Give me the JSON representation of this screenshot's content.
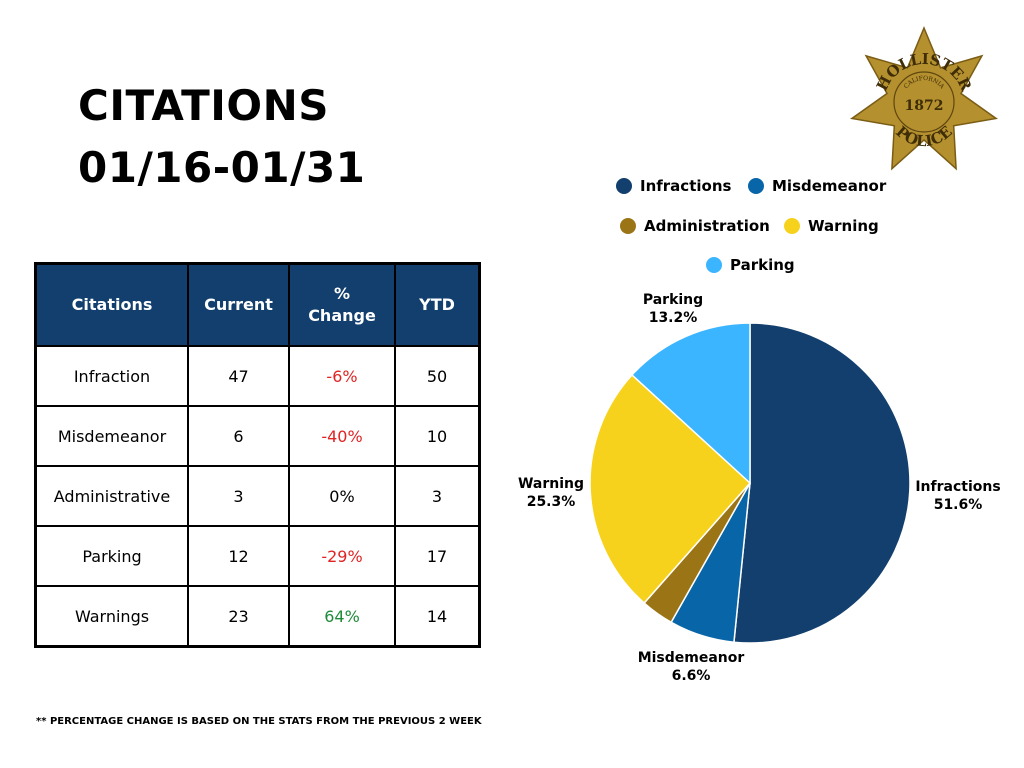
{
  "header": {
    "title_line1": "CITATIONS",
    "title_line2": "01/16-01/31"
  },
  "badge": {
    "top_text": "HOLLISTER",
    "state": "CALIFORNIA",
    "year": "1872",
    "bottom_text": "POLICE",
    "color": "#b5902f"
  },
  "table": {
    "headers": [
      "Citations",
      "Current",
      "%\nChange",
      "YTD"
    ],
    "rows": [
      {
        "name": "Infraction",
        "current": "47",
        "change": "-6%",
        "change_color": "#e02424",
        "ytd": "50"
      },
      {
        "name": "Misdemeanor",
        "current": "6",
        "change": "-40%",
        "change_color": "#e02424",
        "ytd": "10"
      },
      {
        "name": "Administrative",
        "current": "3",
        "change": "0%",
        "change_color": "#000000",
        "ytd": "3"
      },
      {
        "name": "Parking",
        "current": "12",
        "change": "-29%",
        "change_color": "#e02424",
        "ytd": "17"
      },
      {
        "name": "Warnings",
        "current": "23",
        "change": "64%",
        "change_color": "#1f8a3a",
        "ytd": "14"
      }
    ]
  },
  "chart_data": {
    "type": "pie",
    "title": "",
    "slices": [
      {
        "label": "Infractions",
        "value": 51.6,
        "display": "51.6%",
        "color": "#123f6d"
      },
      {
        "label": "Misdemeanor",
        "value": 6.6,
        "display": "6.6%",
        "color": "#0866a8"
      },
      {
        "label": "Administration",
        "value": 3.3,
        "display": "",
        "color": "#9b7416"
      },
      {
        "label": "Warning",
        "value": 25.3,
        "display": "25.3%",
        "color": "#f6d21d"
      },
      {
        "label": "Parking",
        "value": 13.2,
        "display": "13.2%",
        "color": "#3bb5ff"
      }
    ],
    "slice_labels": [
      {
        "name": "Infractions",
        "pct": "51.6%"
      },
      {
        "name": "Misdemeanor",
        "pct": "6.6%"
      },
      {
        "name": "Warning",
        "pct": "25.3%"
      },
      {
        "name": "Parking",
        "pct": "13.2%"
      }
    ],
    "legend": [
      "Infractions",
      "Misdemeanor",
      "Administration",
      "Warning",
      "Parking"
    ],
    "legend_position": "top"
  },
  "footnote": "** PERCENTAGE CHANGE IS BASED ON THE STATS FROM THE PREVIOUS 2 WEEK"
}
